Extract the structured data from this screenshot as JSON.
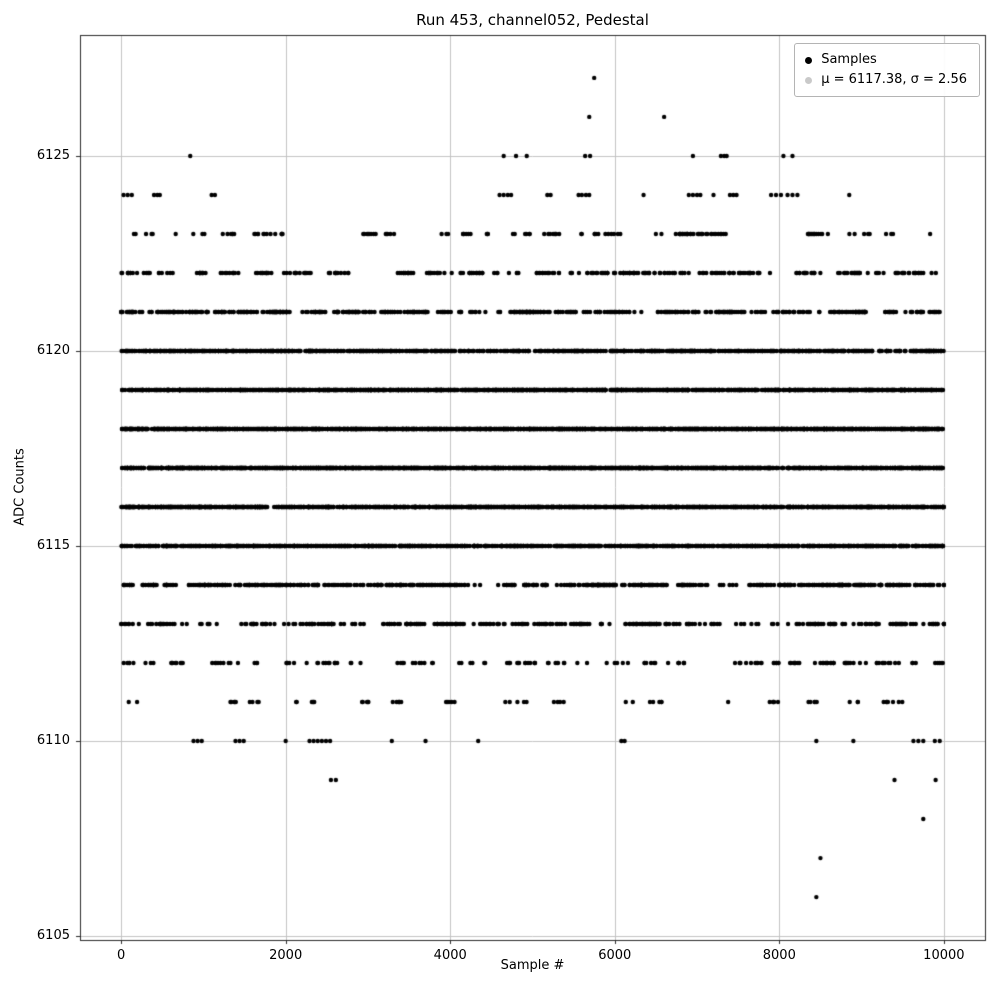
{
  "figure": {
    "title": "Run 453, channel052, Pedestal",
    "xlabel": "Sample #",
    "ylabel": "ADC Counts",
    "legend": {
      "entries": [
        {
          "label": "Samples",
          "marker_color": "#000000"
        },
        {
          "label": "μ = 6117.38, σ = 2.56",
          "marker_color": "#c9c9c9"
        }
      ]
    },
    "colors": {
      "marker": "#000000",
      "grid": "#c3c3c3",
      "frame": "#2b2b2b",
      "tick": "#2b2b2b",
      "background": "#ffffff"
    }
  },
  "chart_data": {
    "type": "scatter",
    "title": "Run 453, channel052, Pedestal",
    "xlabel": "Sample #",
    "ylabel": "ADC Counts",
    "xlim": [
      -500,
      10500
    ],
    "ylim": [
      6104.9,
      6128.1
    ],
    "xticks": [
      0,
      2000,
      4000,
      6000,
      8000,
      10000
    ],
    "yticks": [
      6105,
      6110,
      6115,
      6120,
      6125
    ],
    "grid": true,
    "legend_position": "upper right",
    "stats": {
      "mu": 6117.38,
      "sigma": 2.56
    },
    "marker": {
      "shape": "circle",
      "color": "#000000",
      "radius_px": 2.2
    },
    "levels": [
      {
        "y": 6127,
        "xs": [
          5750
        ]
      },
      {
        "y": 6126,
        "xs": [
          5690,
          6600
        ]
      },
      {
        "y": 6125,
        "xs": [
          840,
          4650,
          4800,
          4930,
          5640,
          5700,
          6950,
          7290,
          7330,
          7360,
          8050,
          8160
        ]
      },
      {
        "y": 6124,
        "xs": [
          30,
          80,
          130,
          400,
          440,
          470,
          1100,
          1140,
          4600,
          4650,
          4700,
          4740,
          5180,
          5220,
          5560,
          5600,
          5650,
          5690,
          6350,
          6900,
          6950,
          7000,
          7040,
          7200,
          7400,
          7440,
          7480,
          7900,
          7960,
          8020,
          8100,
          8160,
          8220,
          8850
        ]
      },
      {
        "y": 6123,
        "n": 140,
        "clustered": true
      },
      {
        "y": 6122,
        "n": 306,
        "clustered": true
      },
      {
        "y": 6121,
        "n": 573,
        "clustered": true
      },
      {
        "y": 6120,
        "n": 923,
        "clustered": false
      },
      {
        "y": 6119,
        "n": 1276,
        "clustered": false
      },
      {
        "y": 6118,
        "n": 1513,
        "clustered": false
      },
      {
        "y": 6117,
        "n": 1541,
        "clustered": false
      },
      {
        "y": 6116,
        "n": 1348,
        "clustered": false
      },
      {
        "y": 6115,
        "n": 1011,
        "clustered": false
      },
      {
        "y": 6114,
        "n": 652,
        "clustered": true
      },
      {
        "y": 6113,
        "n": 360,
        "clustered": true
      },
      {
        "y": 6112,
        "n": 171,
        "clustered": true
      },
      {
        "y": 6111,
        "n": 70,
        "clustered": true
      },
      {
        "y": 6110,
        "xs": [
          880,
          930,
          980,
          1390,
          1440,
          1490,
          2000,
          2290,
          2340,
          2390,
          2440,
          2490,
          2540,
          3290,
          3700,
          4340,
          6080,
          6120,
          8450,
          8900,
          9630,
          9690,
          9750,
          9890,
          9950
        ]
      },
      {
        "y": 6109,
        "xs": [
          2550,
          2610,
          9400,
          9900
        ]
      },
      {
        "y": 6108,
        "xs": [
          9750
        ]
      },
      {
        "y": 6107,
        "xs": [
          8500
        ]
      },
      {
        "y": 6106,
        "xs": [
          8450
        ]
      }
    ]
  }
}
